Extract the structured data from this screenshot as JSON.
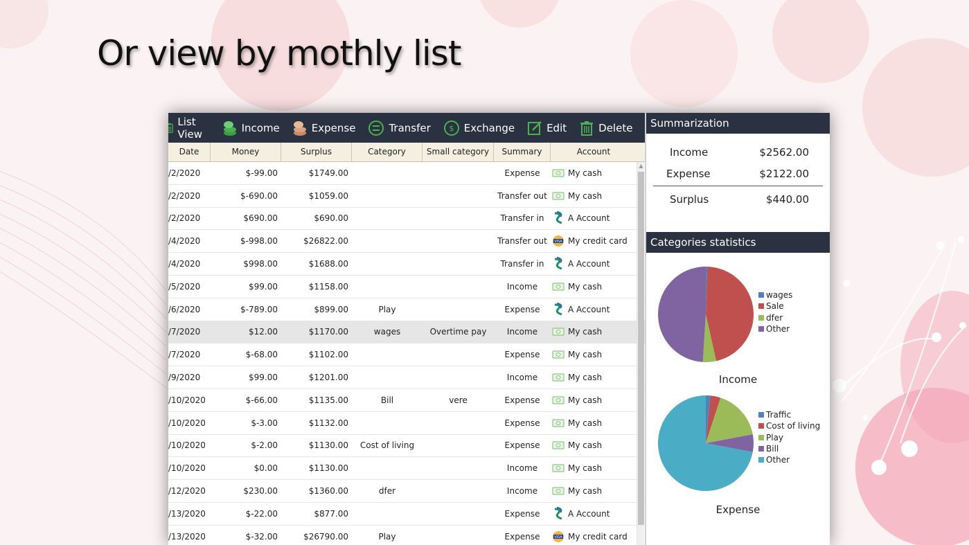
{
  "headline": "Or view by mothly list",
  "toolbar": [
    {
      "label": "List View",
      "icon": "list-view-icon"
    },
    {
      "label": "Income",
      "icon": "income-coins-icon"
    },
    {
      "label": "Expense",
      "icon": "expense-coins-icon"
    },
    {
      "label": "Transfer",
      "icon": "transfer-icon"
    },
    {
      "label": "Exchange",
      "icon": "exchange-icon"
    },
    {
      "label": "Edit",
      "icon": "edit-icon"
    },
    {
      "label": "Delete",
      "icon": "delete-icon"
    }
  ],
  "table": {
    "columns": [
      "Date",
      "Money",
      "Surplus",
      "Category",
      "Small category",
      "Summary",
      "Account"
    ],
    "rows": [
      {
        "date": "/2/2020",
        "money": "$-99.00",
        "surplus": "$1749.00",
        "category": "",
        "small": "",
        "summary": "Expense",
        "account": "My cash",
        "acct_icon": "cash"
      },
      {
        "date": "/2/2020",
        "money": "$-690.00",
        "surplus": "$1059.00",
        "category": "",
        "small": "",
        "summary": "Transfer out",
        "account": "My cash",
        "acct_icon": "cash"
      },
      {
        "date": "/2/2020",
        "money": "$690.00",
        "surplus": "$690.00",
        "category": "",
        "small": "",
        "summary": "Transfer in",
        "account": "A Account",
        "acct_icon": "bank"
      },
      {
        "date": "/4/2020",
        "money": "$-998.00",
        "surplus": "$26822.00",
        "category": "",
        "small": "",
        "summary": "Transfer out",
        "account": "My credit card",
        "acct_icon": "card"
      },
      {
        "date": "/4/2020",
        "money": "$998.00",
        "surplus": "$1688.00",
        "category": "",
        "small": "",
        "summary": "Transfer in",
        "account": "A Account",
        "acct_icon": "bank"
      },
      {
        "date": "/5/2020",
        "money": "$99.00",
        "surplus": "$1158.00",
        "category": "",
        "small": "",
        "summary": "Income",
        "account": "My cash",
        "acct_icon": "cash"
      },
      {
        "date": "/6/2020",
        "money": "$-789.00",
        "surplus": "$899.00",
        "category": "Play",
        "small": "",
        "summary": "Expense",
        "account": "A Account",
        "acct_icon": "bank"
      },
      {
        "date": "/7/2020",
        "money": "$12.00",
        "surplus": "$1170.00",
        "category": "wages",
        "small": "Overtime pay",
        "summary": "Income",
        "account": "My cash",
        "acct_icon": "cash",
        "selected": true
      },
      {
        "date": "/7/2020",
        "money": "$-68.00",
        "surplus": "$1102.00",
        "category": "",
        "small": "",
        "summary": "Expense",
        "account": "My cash",
        "acct_icon": "cash"
      },
      {
        "date": "/9/2020",
        "money": "$99.00",
        "surplus": "$1201.00",
        "category": "",
        "small": "",
        "summary": "Income",
        "account": "My cash",
        "acct_icon": "cash"
      },
      {
        "date": "/10/2020",
        "money": "$-66.00",
        "surplus": "$1135.00",
        "category": "Bill",
        "small": "vere",
        "summary": "Expense",
        "account": "My cash",
        "acct_icon": "cash"
      },
      {
        "date": "/10/2020",
        "money": "$-3.00",
        "surplus": "$1132.00",
        "category": "",
        "small": "",
        "summary": "Expense",
        "account": "My cash",
        "acct_icon": "cash"
      },
      {
        "date": "/10/2020",
        "money": "$-2.00",
        "surplus": "$1130.00",
        "category": "Cost of living",
        "small": "",
        "summary": "Expense",
        "account": "My cash",
        "acct_icon": "cash"
      },
      {
        "date": "/10/2020",
        "money": "$0.00",
        "surplus": "$1130.00",
        "category": "",
        "small": "",
        "summary": "Income",
        "account": "My cash",
        "acct_icon": "cash"
      },
      {
        "date": "/12/2020",
        "money": "$230.00",
        "surplus": "$1360.00",
        "category": "dfer",
        "small": "",
        "summary": "Income",
        "account": "My cash",
        "acct_icon": "cash"
      },
      {
        "date": "/13/2020",
        "money": "$-22.00",
        "surplus": "$877.00",
        "category": "",
        "small": "",
        "summary": "Expense",
        "account": "A Account",
        "acct_icon": "bank"
      },
      {
        "date": "/13/2020",
        "money": "$-32.00",
        "surplus": "$26790.00",
        "category": "Play",
        "small": "",
        "summary": "Expense",
        "account": "My credit card",
        "acct_icon": "card"
      }
    ]
  },
  "summarization": {
    "title": "Summarization",
    "income_label": "Income",
    "income_value": "$2562.00",
    "expense_label": "Expense",
    "expense_value": "$2122.00",
    "surplus_label": "Surplus",
    "surplus_value": "$440.00"
  },
  "categories": {
    "title": "Categories statistics"
  },
  "chart_data": [
    {
      "type": "pie",
      "title": "Income",
      "labels": [
        "wages",
        "Sale",
        "dfer",
        "Other"
      ],
      "values": [
        0.5,
        46,
        4.5,
        49
      ],
      "colors": [
        "#4f81bd",
        "#c0504d",
        "#9bbb59",
        "#8064a2"
      ]
    },
    {
      "type": "pie",
      "title": "Expense",
      "labels": [
        "Traffic",
        "Cost of living",
        "Play",
        "Bill",
        "Other"
      ],
      "values": [
        1.5,
        3.5,
        17,
        6,
        72
      ],
      "colors": [
        "#4f81bd",
        "#c0504d",
        "#9bbb59",
        "#8064a2",
        "#4bacc6"
      ]
    }
  ],
  "colors": {
    "header_bg": "#2a3140",
    "table_header_bg": "#f4efe1",
    "selected_row": "#e6e6e6"
  }
}
